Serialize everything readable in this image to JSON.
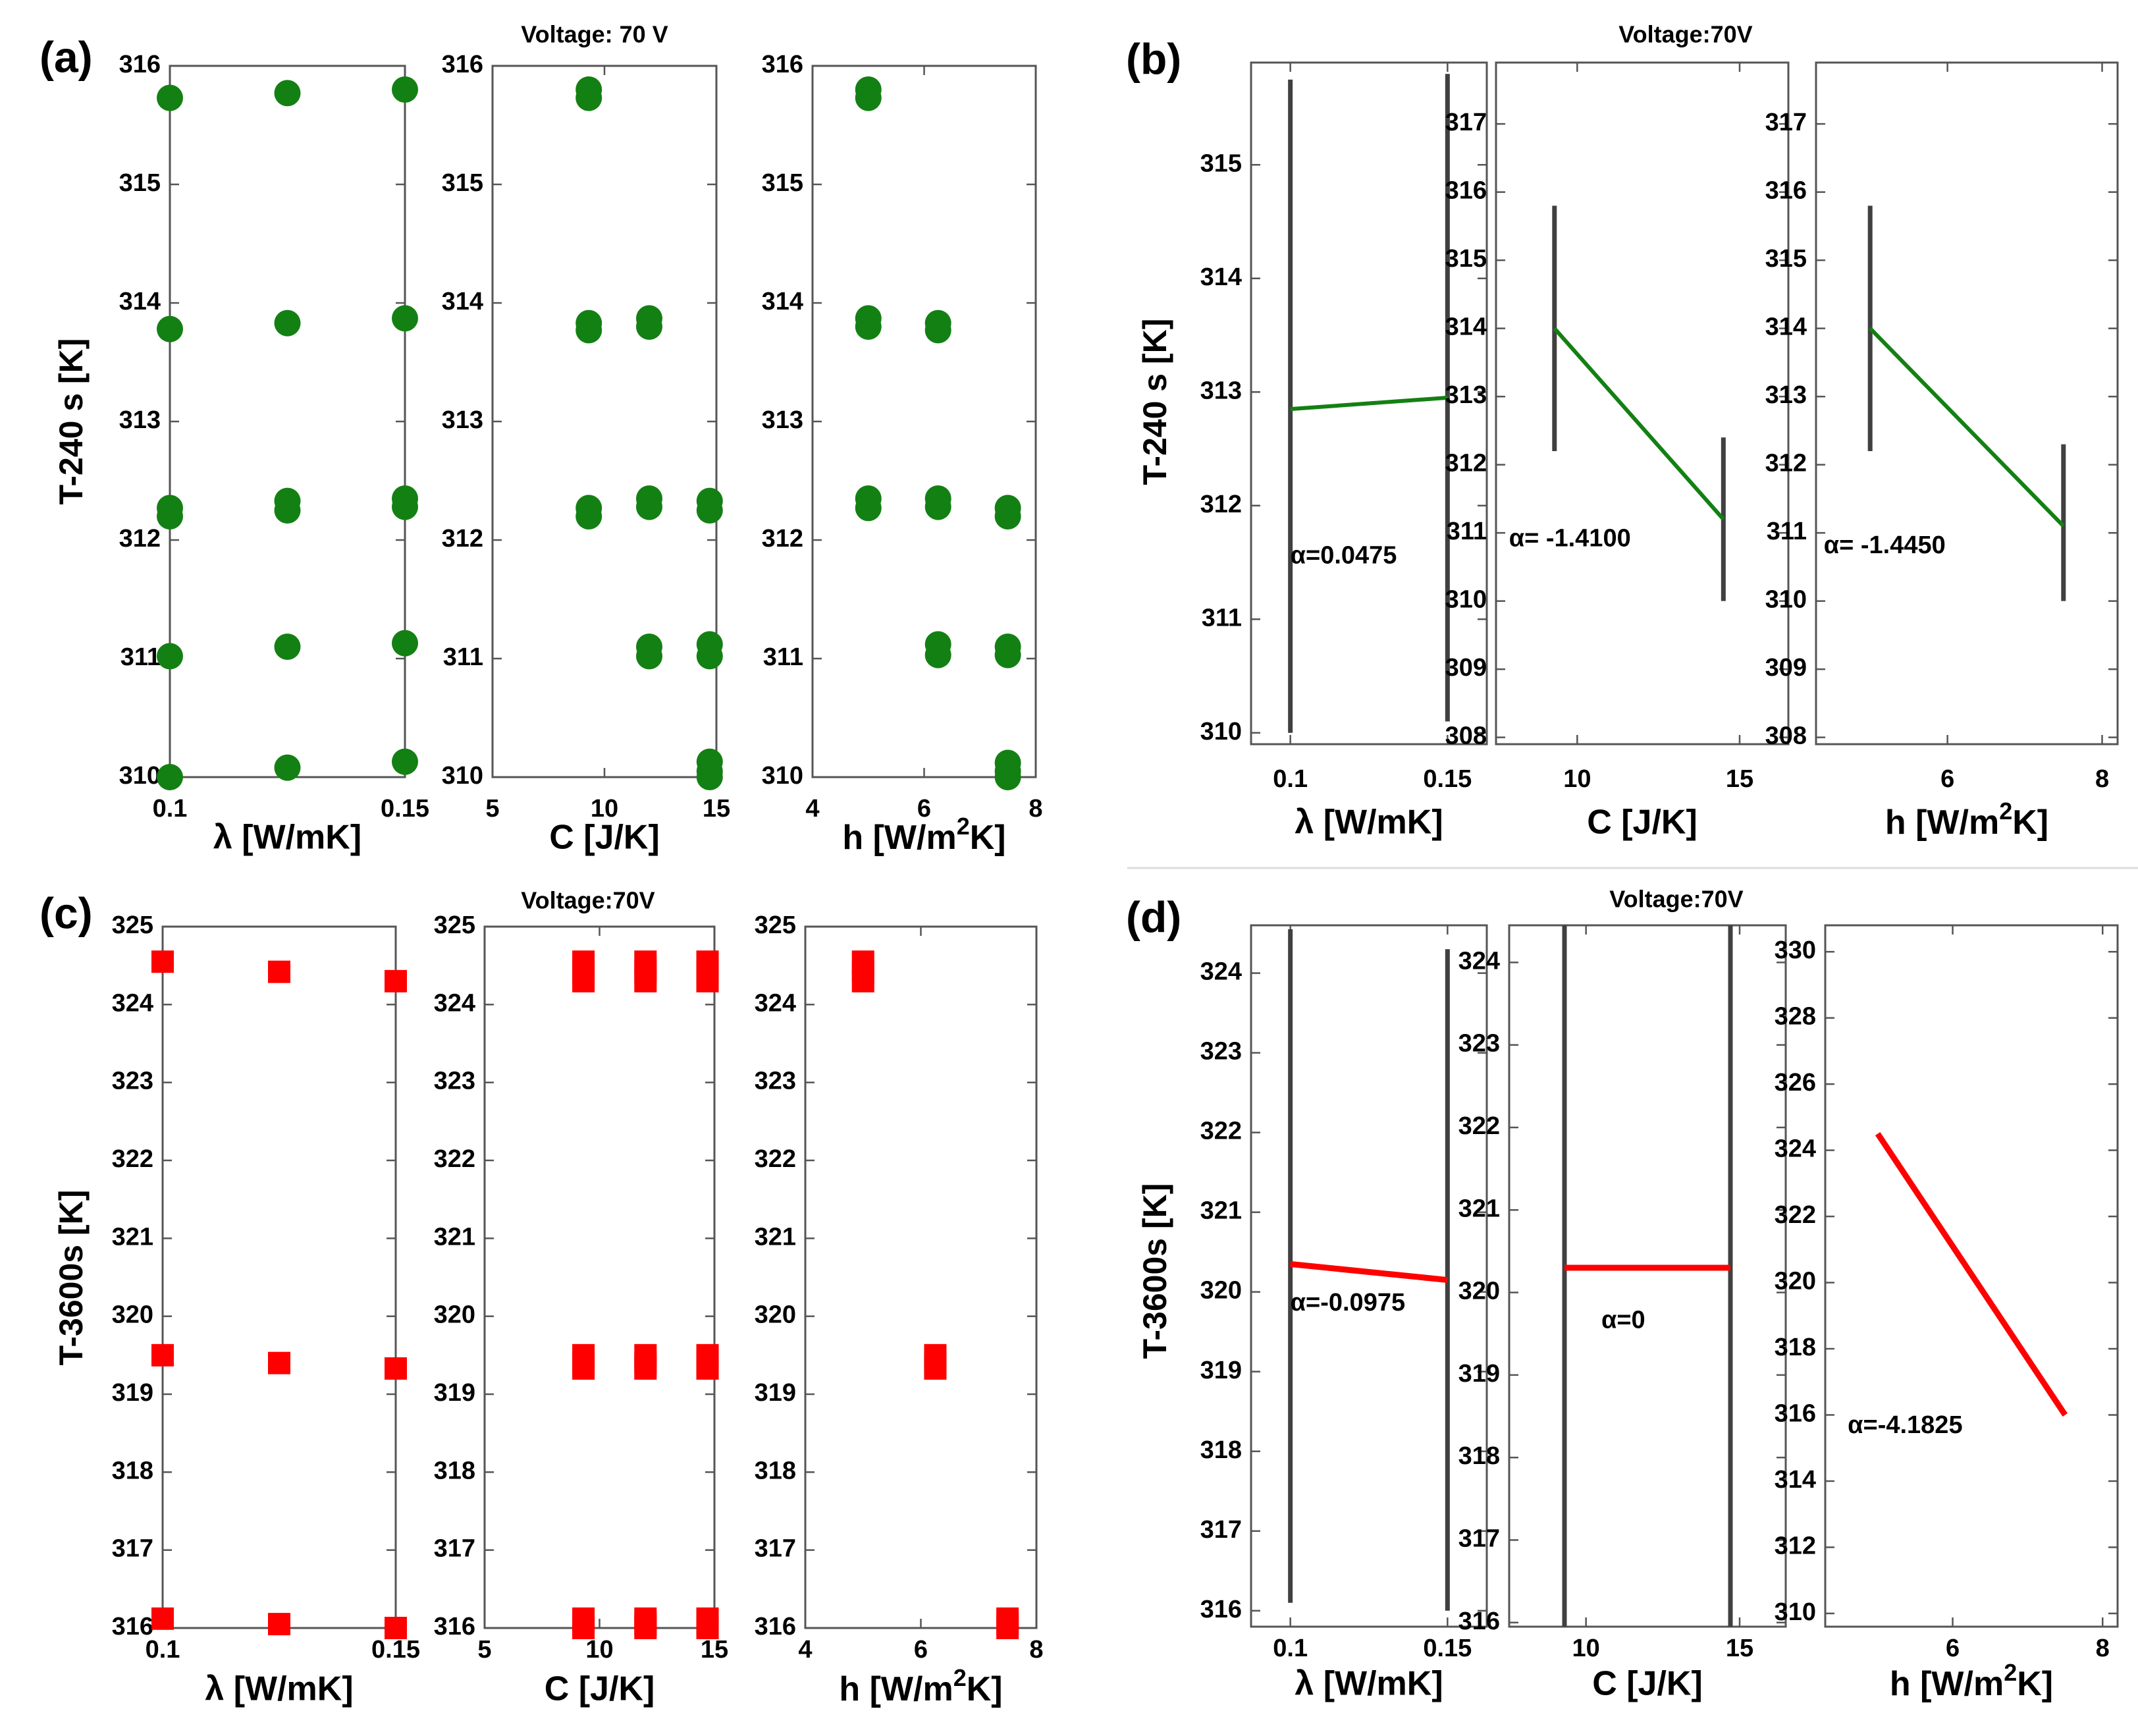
{
  "colors": {
    "green": "#138013",
    "red": "#ff0000",
    "axis": "#555555",
    "bar": "#404040",
    "text": "#000000"
  },
  "units": {
    "lambda": "λ [W/mK]",
    "c": "C [J/K]",
    "h_prefix": "h [W/m",
    "h_sup": "2",
    "h_suffix": "K]"
  },
  "chart_data": [
    {
      "id": "a",
      "panel_label": "(a)",
      "title": "Voltage: 70 V",
      "type": "scatter",
      "ylabel": "T-240 s [K]",
      "color": "#138013",
      "marker": "circle",
      "subplots": [
        {
          "xunit": "lambda",
          "xlim": [
            0.1,
            0.15
          ],
          "ylim": [
            310,
            316
          ],
          "xticks": [
            {
              "v": 0.1,
              "l": "0.1"
            },
            {
              "v": 0.15,
              "l": "0.15"
            }
          ],
          "yticks": [
            310,
            311,
            312,
            313,
            314,
            315,
            316
          ],
          "points": [
            [
              0.1,
              315.73
            ],
            [
              0.125,
              315.77
            ],
            [
              0.15,
              315.8
            ],
            [
              0.1,
              313.78
            ],
            [
              0.125,
              313.83
            ],
            [
              0.15,
              313.87
            ],
            [
              0.1,
              312.27
            ],
            [
              0.1,
              312.2
            ],
            [
              0.125,
              312.33
            ],
            [
              0.125,
              312.25
            ],
            [
              0.15,
              312.35
            ],
            [
              0.15,
              312.28
            ],
            [
              0.1,
              311.02
            ],
            [
              0.125,
              311.1
            ],
            [
              0.15,
              311.13
            ],
            [
              0.1,
              310.0
            ],
            [
              0.125,
              310.08
            ],
            [
              0.15,
              310.13
            ]
          ]
        },
        {
          "xunit": "c",
          "xlim": [
            5,
            15
          ],
          "ylim": [
            310,
            316
          ],
          "xticks": [
            {
              "v": 5,
              "l": "5"
            },
            {
              "v": 10,
              "l": "10"
            },
            {
              "v": 15,
              "l": "15"
            }
          ],
          "yticks": [
            310,
            311,
            312,
            313,
            314,
            315,
            316
          ],
          "points": [
            [
              9.3,
              315.8
            ],
            [
              9.3,
              315.73
            ],
            [
              9.3,
              313.83
            ],
            [
              9.3,
              313.77
            ],
            [
              9.3,
              312.27
            ],
            [
              9.3,
              312.2
            ],
            [
              12,
              313.87
            ],
            [
              12,
              313.8
            ],
            [
              12,
              312.35
            ],
            [
              12,
              312.28
            ],
            [
              12,
              311.1
            ],
            [
              12,
              311.02
            ],
            [
              14.7,
              312.33
            ],
            [
              14.7,
              312.25
            ],
            [
              14.7,
              311.12
            ],
            [
              14.7,
              311.02
            ],
            [
              14.7,
              310.13
            ],
            [
              14.7,
              310.05
            ],
            [
              14.7,
              310.0
            ]
          ]
        },
        {
          "xunit": "h",
          "xlim": [
            4,
            8
          ],
          "ylim": [
            310,
            316
          ],
          "xticks": [
            {
              "v": 4,
              "l": "4"
            },
            {
              "v": 6,
              "l": "6"
            },
            {
              "v": 8,
              "l": "8"
            }
          ],
          "yticks": [
            310,
            311,
            312,
            313,
            314,
            315,
            316
          ],
          "points": [
            [
              5,
              315.8
            ],
            [
              5,
              315.73
            ],
            [
              5,
              313.87
            ],
            [
              5,
              313.8
            ],
            [
              5,
              312.35
            ],
            [
              5,
              312.27
            ],
            [
              6.25,
              313.83
            ],
            [
              6.25,
              313.77
            ],
            [
              6.25,
              312.35
            ],
            [
              6.25,
              312.28
            ],
            [
              6.25,
              311.12
            ],
            [
              6.25,
              311.03
            ],
            [
              7.5,
              312.27
            ],
            [
              7.5,
              312.2
            ],
            [
              7.5,
              311.1
            ],
            [
              7.5,
              311.03
            ],
            [
              7.5,
              310.12
            ],
            [
              7.5,
              310.05
            ],
            [
              7.5,
              310.0
            ]
          ]
        }
      ]
    },
    {
      "id": "b",
      "panel_label": "(b)",
      "title": "Voltage:70V",
      "type": "line",
      "ylabel": "T-240 s [K]",
      "color": "#138013",
      "subplots": [
        {
          "xunit": "lambda",
          "xlim": [
            0.0875,
            0.1625
          ],
          "ylim": [
            309.9,
            315.9
          ],
          "xticks": [
            {
              "v": 0.1,
              "l": "0.1"
            },
            {
              "v": 0.15,
              "l": "0.15"
            }
          ],
          "yticks": [
            310,
            311,
            312,
            313,
            314,
            315
          ],
          "bars": [
            {
              "x": 0.1,
              "lo": 310.0,
              "hi": 315.75
            },
            {
              "x": 0.15,
              "lo": 310.1,
              "hi": 315.8
            }
          ],
          "line": [
            [
              0.1,
              312.85
            ],
            [
              0.15,
              312.95
            ]
          ],
          "annotation": "α=0.0475",
          "ann_at": [
            0.1,
            311.55
          ]
        },
        {
          "xunit": "c",
          "xlim": [
            7.5,
            16.5
          ],
          "ylim": [
            307.9,
            317.9
          ],
          "xticks": [
            {
              "v": 10,
              "l": "10"
            },
            {
              "v": 15,
              "l": "15"
            }
          ],
          "yticks": [
            308,
            309,
            310,
            311,
            312,
            313,
            314,
            315,
            316,
            317
          ],
          "bars": [
            {
              "x": 9.3,
              "lo": 312.2,
              "hi": 315.8
            },
            {
              "x": 14.5,
              "lo": 310.0,
              "hi": 312.4
            }
          ],
          "line": [
            [
              9.3,
              314.0
            ],
            [
              14.5,
              311.2
            ]
          ],
          "annotation": "α= -1.4100",
          "ann_at": [
            7.9,
            310.9
          ]
        },
        {
          "xunit": "h",
          "xlim": [
            4.3,
            8.2
          ],
          "ylim": [
            307.9,
            317.9
          ],
          "xticks": [
            {
              "v": 6,
              "l": "6"
            },
            {
              "v": 8,
              "l": "8"
            }
          ],
          "yticks": [
            308,
            309,
            310,
            311,
            312,
            313,
            314,
            315,
            316,
            317
          ],
          "bars": [
            {
              "x": 5,
              "lo": 312.2,
              "hi": 315.8
            },
            {
              "x": 7.5,
              "lo": 310.0,
              "hi": 312.3
            }
          ],
          "line": [
            [
              5,
              314.0
            ],
            [
              7.5,
              311.1
            ]
          ],
          "annotation": "α= -1.4450",
          "ann_at": [
            4.4,
            310.8
          ]
        }
      ]
    },
    {
      "id": "c",
      "panel_label": "(c)",
      "title": "Voltage:70V",
      "type": "scatter",
      "ylabel": "T-3600s [K]",
      "color": "#ff0000",
      "marker": "square",
      "subplots": [
        {
          "xunit": "lambda",
          "xlim": [
            0.1,
            0.15
          ],
          "ylim": [
            316,
            325
          ],
          "xticks": [
            {
              "v": 0.1,
              "l": "0.1"
            },
            {
              "v": 0.15,
              "l": "0.15"
            }
          ],
          "yticks": [
            316,
            317,
            318,
            319,
            320,
            321,
            322,
            323,
            324,
            325
          ],
          "points": [
            [
              0.1,
              324.55
            ],
            [
              0.125,
              324.42
            ],
            [
              0.15,
              324.3
            ],
            [
              0.1,
              319.5
            ],
            [
              0.125,
              319.4
            ],
            [
              0.15,
              319.33
            ],
            [
              0.1,
              316.12
            ],
            [
              0.125,
              316.05
            ],
            [
              0.15,
              316.0
            ]
          ]
        },
        {
          "xunit": "c",
          "xlim": [
            5,
            15
          ],
          "ylim": [
            316,
            325
          ],
          "xticks": [
            {
              "v": 5,
              "l": "5"
            },
            {
              "v": 10,
              "l": "10"
            },
            {
              "v": 15,
              "l": "15"
            }
          ],
          "yticks": [
            316,
            317,
            318,
            319,
            320,
            321,
            322,
            323,
            324,
            325
          ],
          "points": [
            [
              9.3,
              324.55
            ],
            [
              9.3,
              324.42
            ],
            [
              9.3,
              324.3
            ],
            [
              9.3,
              319.5
            ],
            [
              9.3,
              319.4
            ],
            [
              9.3,
              319.33
            ],
            [
              9.3,
              316.12
            ],
            [
              9.3,
              316.05
            ],
            [
              9.3,
              316.0
            ],
            [
              12,
              324.55
            ],
            [
              12,
              324.42
            ],
            [
              12,
              324.3
            ],
            [
              12,
              319.5
            ],
            [
              12,
              319.4
            ],
            [
              12,
              319.33
            ],
            [
              12,
              316.12
            ],
            [
              12,
              316.05
            ],
            [
              12,
              316.0
            ],
            [
              14.7,
              324.55
            ],
            [
              14.7,
              324.42
            ],
            [
              14.7,
              324.3
            ],
            [
              14.7,
              319.5
            ],
            [
              14.7,
              319.4
            ],
            [
              14.7,
              319.33
            ],
            [
              14.7,
              316.12
            ],
            [
              14.7,
              316.05
            ],
            [
              14.7,
              316.0
            ]
          ]
        },
        {
          "xunit": "h",
          "xlim": [
            4,
            8
          ],
          "ylim": [
            316,
            325
          ],
          "xticks": [
            {
              "v": 4,
              "l": "4"
            },
            {
              "v": 6,
              "l": "6"
            },
            {
              "v": 8,
              "l": "8"
            }
          ],
          "yticks": [
            316,
            317,
            318,
            319,
            320,
            321,
            322,
            323,
            324,
            325
          ],
          "points": [
            [
              5,
              324.55
            ],
            [
              5,
              324.42
            ],
            [
              5,
              324.3
            ],
            [
              6.25,
              319.5
            ],
            [
              6.25,
              319.4
            ],
            [
              6.25,
              319.33
            ],
            [
              7.5,
              316.12
            ],
            [
              7.5,
              316.05
            ],
            [
              7.5,
              316.0
            ]
          ]
        }
      ]
    },
    {
      "id": "d",
      "panel_label": "(d)",
      "title": "Voltage:70V",
      "type": "line",
      "ylabel": "T-3600s [K]",
      "color": "#ff0000",
      "subplots": [
        {
          "xunit": "lambda",
          "xlim": [
            0.0875,
            0.1625
          ],
          "ylim": [
            315.8,
            324.6
          ],
          "xticks": [
            {
              "v": 0.1,
              "l": "0.1"
            },
            {
              "v": 0.15,
              "l": "0.15"
            }
          ],
          "yticks": [
            316,
            317,
            318,
            319,
            320,
            321,
            322,
            323,
            324
          ],
          "bars": [
            {
              "x": 0.1,
              "lo": 316.1,
              "hi": 324.55
            },
            {
              "x": 0.15,
              "lo": 316.0,
              "hi": 324.3
            }
          ],
          "line": [
            [
              0.1,
              320.35
            ],
            [
              0.15,
              320.15
            ]
          ],
          "annotation": "α=-0.0975",
          "ann_at": [
            0.1,
            319.85
          ]
        },
        {
          "xunit": "c",
          "xlim": [
            7.5,
            16.5
          ],
          "ylim": [
            315.95,
            324.45
          ],
          "xticks": [
            {
              "v": 10,
              "l": "10"
            },
            {
              "v": 15,
              "l": "15"
            }
          ],
          "yticks": [
            316,
            317,
            318,
            319,
            320,
            321,
            322,
            323,
            324
          ],
          "bars": [
            {
              "x": 9.3,
              "lo": 315.95,
              "hi": 324.45
            },
            {
              "x": 14.7,
              "lo": 315.95,
              "hi": 324.45
            }
          ],
          "line": [
            [
              9.3,
              320.3
            ],
            [
              14.7,
              320.3
            ]
          ],
          "annotation": "α=0",
          "ann_at": [
            10.5,
            319.65
          ]
        },
        {
          "xunit": "h",
          "xlim": [
            4.3,
            8.2
          ],
          "ylim": [
            309.6,
            330.8
          ],
          "xticks": [
            {
              "v": 6,
              "l": "6"
            },
            {
              "v": 8,
              "l": "8"
            }
          ],
          "yticks": [
            310,
            312,
            314,
            316,
            318,
            320,
            322,
            324,
            326,
            328,
            330
          ],
          "bars": [],
          "line": [
            [
              5,
              324.5
            ],
            [
              7.5,
              316.0
            ]
          ],
          "annotation": "α=-4.1825",
          "ann_at": [
            4.6,
            315.65
          ]
        }
      ]
    }
  ]
}
